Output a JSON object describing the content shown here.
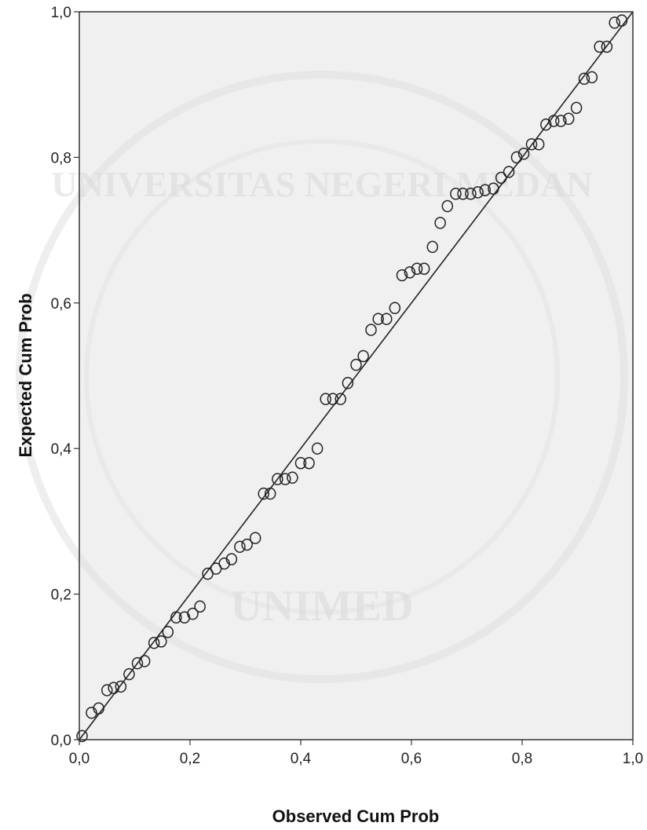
{
  "chart_data": {
    "type": "scatter",
    "title": "",
    "xlabel": "Observed Cum Prob",
    "ylabel": "Expected Cum Prob",
    "xlim": [
      0,
      1
    ],
    "ylim": [
      0,
      1
    ],
    "x_ticks": [
      "0,0",
      "0,2",
      "0,4",
      "0,6",
      "0,8",
      "1,0"
    ],
    "y_ticks": [
      "0,0",
      "0,2",
      "0,4",
      "0,6",
      "0,8",
      "1,0"
    ],
    "grid": false,
    "reference_line": {
      "from": [
        0,
        0
      ],
      "to": [
        1,
        1
      ]
    },
    "plot_background": "#f0f0f0",
    "marker_color": "#222222",
    "series": [
      {
        "points": [
          [
            0.005,
            0.005
          ],
          [
            0.022,
            0.037
          ],
          [
            0.035,
            0.043
          ],
          [
            0.05,
            0.068
          ],
          [
            0.062,
            0.071
          ],
          [
            0.075,
            0.073
          ],
          [
            0.09,
            0.09
          ],
          [
            0.105,
            0.105
          ],
          [
            0.118,
            0.108
          ],
          [
            0.135,
            0.133
          ],
          [
            0.148,
            0.135
          ],
          [
            0.16,
            0.148
          ],
          [
            0.175,
            0.168
          ],
          [
            0.19,
            0.168
          ],
          [
            0.205,
            0.173
          ],
          [
            0.218,
            0.183
          ],
          [
            0.232,
            0.228
          ],
          [
            0.247,
            0.235
          ],
          [
            0.262,
            0.242
          ],
          [
            0.275,
            0.248
          ],
          [
            0.29,
            0.265
          ],
          [
            0.303,
            0.268
          ],
          [
            0.318,
            0.277
          ],
          [
            0.333,
            0.338
          ],
          [
            0.345,
            0.338
          ],
          [
            0.358,
            0.358
          ],
          [
            0.372,
            0.358
          ],
          [
            0.385,
            0.36
          ],
          [
            0.4,
            0.38
          ],
          [
            0.415,
            0.38
          ],
          [
            0.43,
            0.4
          ],
          [
            0.445,
            0.468
          ],
          [
            0.458,
            0.468
          ],
          [
            0.472,
            0.468
          ],
          [
            0.485,
            0.49
          ],
          [
            0.5,
            0.515
          ],
          [
            0.513,
            0.527
          ],
          [
            0.527,
            0.563
          ],
          [
            0.54,
            0.578
          ],
          [
            0.555,
            0.578
          ],
          [
            0.57,
            0.593
          ],
          [
            0.583,
            0.638
          ],
          [
            0.597,
            0.642
          ],
          [
            0.61,
            0.647
          ],
          [
            0.623,
            0.647
          ],
          [
            0.638,
            0.677
          ],
          [
            0.652,
            0.71
          ],
          [
            0.665,
            0.733
          ],
          [
            0.68,
            0.75
          ],
          [
            0.693,
            0.75
          ],
          [
            0.707,
            0.75
          ],
          [
            0.72,
            0.752
          ],
          [
            0.733,
            0.755
          ],
          [
            0.748,
            0.757
          ],
          [
            0.762,
            0.772
          ],
          [
            0.776,
            0.78
          ],
          [
            0.79,
            0.8
          ],
          [
            0.803,
            0.805
          ],
          [
            0.817,
            0.818
          ],
          [
            0.83,
            0.818
          ],
          [
            0.843,
            0.845
          ],
          [
            0.857,
            0.85
          ],
          [
            0.87,
            0.85
          ],
          [
            0.884,
            0.853
          ],
          [
            0.898,
            0.868
          ],
          [
            0.912,
            0.908
          ],
          [
            0.926,
            0.91
          ],
          [
            0.94,
            0.952
          ],
          [
            0.953,
            0.952
          ],
          [
            0.967,
            0.985
          ],
          [
            0.98,
            0.988
          ]
        ]
      }
    ]
  },
  "watermark": {
    "top_text": "UNIVERSITAS NEGERI MEDAN",
    "bottom_text": "UNIMED"
  }
}
